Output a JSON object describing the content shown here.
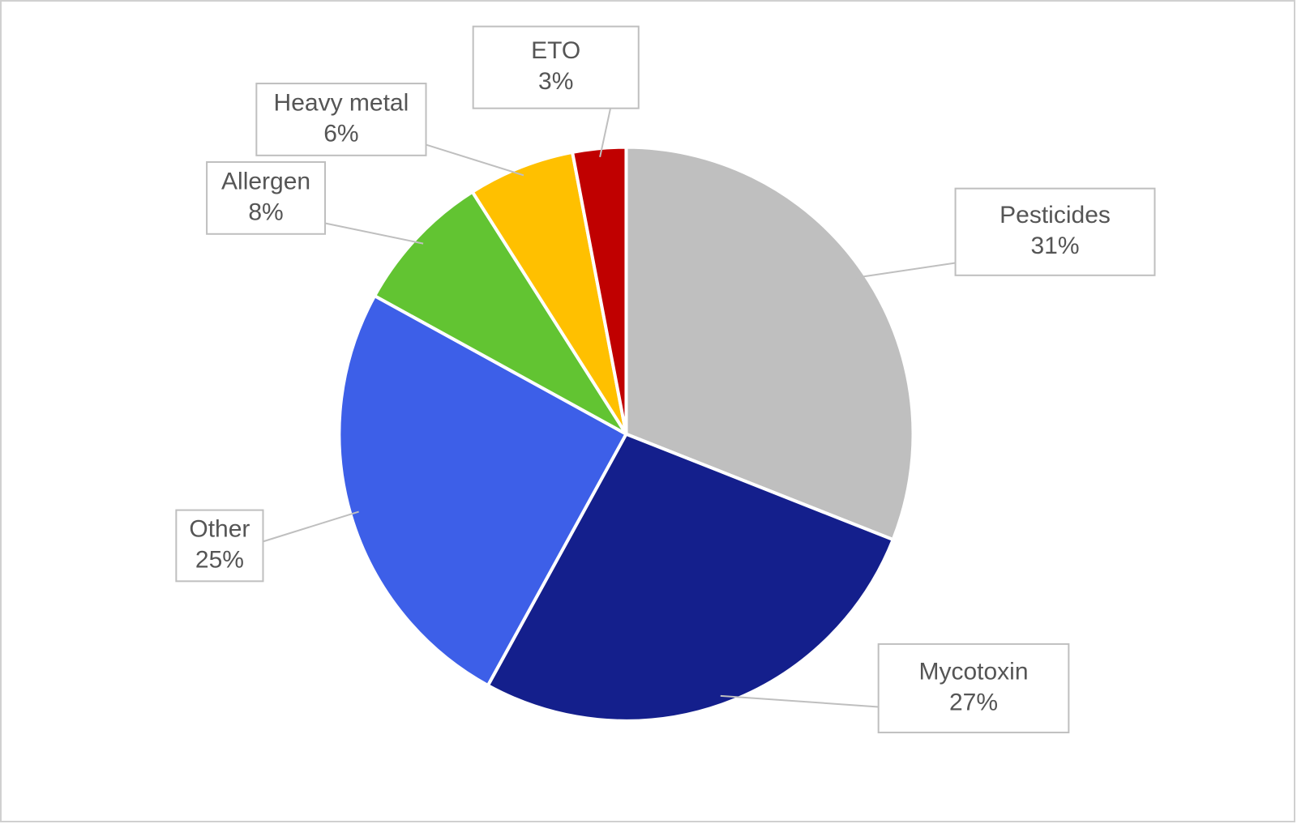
{
  "chart_data": {
    "type": "pie",
    "categories": [
      "Pesticides",
      "Mycotoxin",
      "Other",
      "Allergen",
      "Heavy metal",
      "ETO"
    ],
    "values": [
      31,
      27,
      25,
      8,
      6,
      3
    ],
    "value_labels": [
      "31%",
      "27%",
      "25%",
      "8%",
      "6%",
      "3%"
    ],
    "colors": [
      "#bfbfbf",
      "#141f8c",
      "#3d5fe8",
      "#62c432",
      "#ffc000",
      "#c00000"
    ]
  }
}
